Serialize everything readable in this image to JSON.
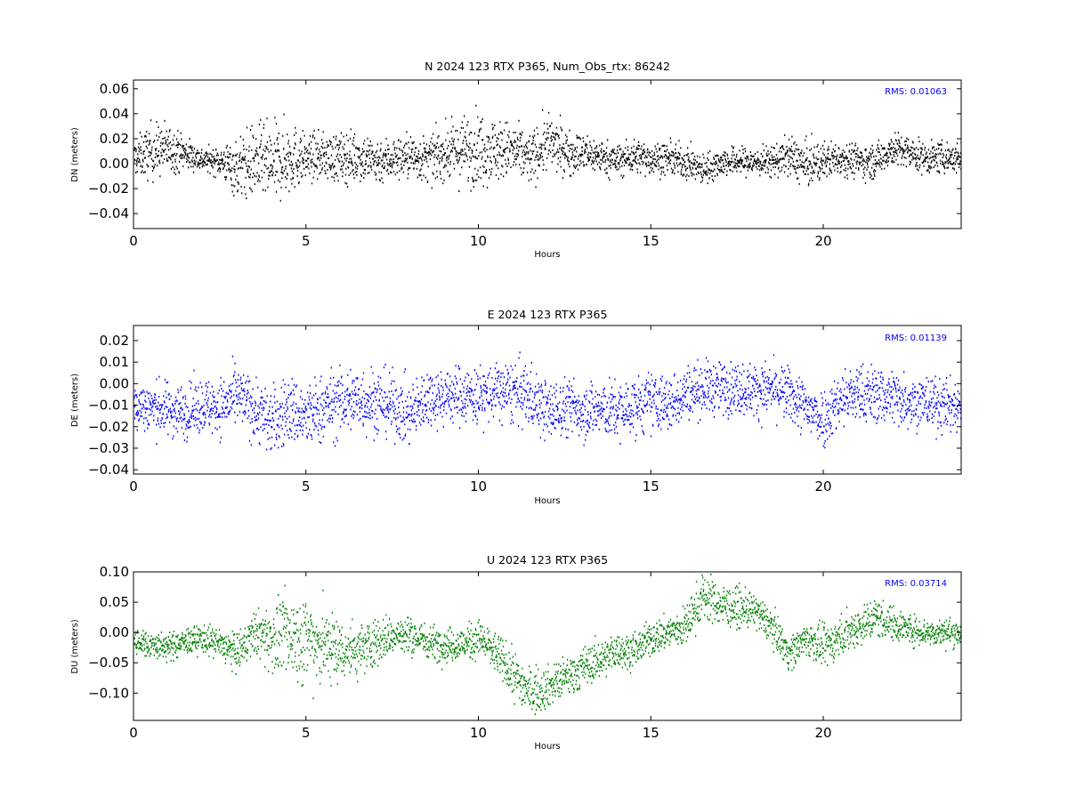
{
  "figure": {
    "background": "#ffffff"
  },
  "chart_data": [
    {
      "type": "scatter",
      "title": "N 2024 123 RTX  P365, Num_Obs_rtx: 86242",
      "xlabel": "Hours",
      "ylabel": "DN (meters)",
      "xlim": [
        0,
        24
      ],
      "ylim": [
        -0.052,
        0.067
      ],
      "xticks": [
        0,
        5,
        10,
        15,
        20
      ],
      "xtick_labels": [
        "0",
        "5",
        "10",
        "15",
        "20"
      ],
      "yticks": [
        -0.04,
        -0.02,
        0.0,
        0.02,
        0.04,
        0.06
      ],
      "ytick_labels": [
        "−0.04",
        "−0.02",
        "0.00",
        "0.02",
        "0.04",
        "0.06"
      ],
      "grid": false,
      "color": "#000000",
      "annotation": {
        "text": "RMS:  0.01063",
        "color": "#0000ff",
        "position": "top-right"
      },
      "series": [
        {
          "x": [
            0,
            0.5,
            1,
            1.5,
            2,
            2.5,
            3,
            3.5,
            4,
            4.5,
            5,
            5.5,
            6,
            6.5,
            7,
            7.5,
            8,
            8.5,
            9,
            9.5,
            10,
            10.5,
            11,
            11.5,
            12,
            12.5,
            13,
            13.5,
            14,
            14.5,
            15,
            15.5,
            16,
            16.5,
            17,
            17.5,
            18,
            18.5,
            19,
            19.5,
            20,
            20.5,
            21,
            21.5,
            22,
            22.5,
            23,
            23.5,
            24
          ],
          "y": [
            0.004,
            0.01,
            0.012,
            0.008,
            0.003,
            0.002,
            -0.004,
            0.002,
            -0.002,
            0.005,
            0.004,
            0.006,
            0.004,
            0.006,
            0.002,
            0.004,
            0.006,
            0.003,
            0.008,
            0.01,
            0.013,
            0.011,
            0.01,
            0.004,
            0.017,
            0.01,
            0.008,
            0.006,
            0.002,
            0.006,
            0.004,
            0.004,
            0.001,
            -0.005,
            0.001,
            0.002,
            0.001,
            0.002,
            0.006,
            -0.002,
            0.002,
            0.005,
            0.002,
            0.002,
            0.012,
            0.008,
            0.004,
            0.005,
            0.004
          ],
          "spread": [
            0.012,
            0.02,
            0.017,
            0.012,
            0.008,
            0.01,
            0.022,
            0.026,
            0.028,
            0.026,
            0.016,
            0.016,
            0.018,
            0.018,
            0.017,
            0.015,
            0.016,
            0.016,
            0.018,
            0.024,
            0.026,
            0.022,
            0.02,
            0.018,
            0.02,
            0.016,
            0.014,
            0.012,
            0.012,
            0.012,
            0.012,
            0.011,
            0.012,
            0.011,
            0.01,
            0.01,
            0.01,
            0.011,
            0.014,
            0.016,
            0.013,
            0.012,
            0.012,
            0.012,
            0.012,
            0.012,
            0.011,
            0.011,
            0.011
          ]
        }
      ]
    },
    {
      "type": "scatter",
      "title": "E 2024 123 RTX  P365",
      "xlabel": "Hours",
      "ylabel": "DE (meters)",
      "xlim": [
        0,
        24
      ],
      "ylim": [
        -0.042,
        0.027
      ],
      "xticks": [
        0,
        5,
        10,
        15,
        20
      ],
      "xtick_labels": [
        "0",
        "5",
        "10",
        "15",
        "20"
      ],
      "yticks": [
        -0.04,
        -0.03,
        -0.02,
        -0.01,
        0.0,
        0.01,
        0.02
      ],
      "ytick_labels": [
        "−0.04",
        "−0.03",
        "−0.02",
        "−0.01",
        "0.00",
        "0.01",
        "0.02"
      ],
      "grid": false,
      "color": "#0000ff",
      "annotation": {
        "text": "RMS:  0.01139",
        "color": "#0000ff",
        "position": "top-right"
      },
      "series": [
        {
          "x": [
            0,
            0.5,
            1,
            1.5,
            2,
            2.5,
            3,
            3.5,
            4,
            4.5,
            5,
            5.5,
            6,
            6.5,
            7,
            7.5,
            8,
            8.5,
            9,
            9.5,
            10,
            10.5,
            11,
            11.5,
            12,
            12.5,
            13,
            13.5,
            14,
            14.5,
            15,
            15.5,
            16,
            16.5,
            17,
            17.5,
            18,
            18.5,
            19,
            19.5,
            20,
            20.5,
            21,
            21.5,
            22,
            22.5,
            23,
            23.5,
            24
          ],
          "y": [
            -0.01,
            -0.011,
            -0.012,
            -0.013,
            -0.01,
            -0.011,
            -0.006,
            -0.012,
            -0.018,
            -0.012,
            -0.016,
            -0.011,
            -0.009,
            -0.007,
            -0.008,
            -0.01,
            -0.015,
            -0.006,
            -0.006,
            -0.005,
            -0.006,
            -0.004,
            -0.004,
            -0.006,
            -0.013,
            -0.011,
            -0.012,
            -0.012,
            -0.013,
            -0.011,
            -0.008,
            -0.01,
            -0.004,
            -0.002,
            -0.002,
            -0.002,
            -0.003,
            -0.003,
            -0.005,
            -0.012,
            -0.016,
            -0.007,
            -0.005,
            -0.005,
            -0.006,
            -0.008,
            -0.009,
            -0.01,
            -0.011
          ],
          "spread": [
            0.01,
            0.011,
            0.011,
            0.011,
            0.011,
            0.012,
            0.012,
            0.013,
            0.014,
            0.014,
            0.014,
            0.014,
            0.014,
            0.014,
            0.014,
            0.013,
            0.013,
            0.012,
            0.012,
            0.012,
            0.012,
            0.012,
            0.013,
            0.013,
            0.012,
            0.012,
            0.012,
            0.012,
            0.012,
            0.012,
            0.012,
            0.012,
            0.011,
            0.011,
            0.011,
            0.011,
            0.011,
            0.011,
            0.011,
            0.012,
            0.012,
            0.012,
            0.012,
            0.012,
            0.012,
            0.011,
            0.011,
            0.011,
            0.011
          ]
        }
      ]
    },
    {
      "type": "scatter",
      "title": "U 2024 123 RTX  P365",
      "xlabel": "Hours",
      "ylabel": "DU (meters)",
      "xlim": [
        0,
        24
      ],
      "ylim": [
        -0.145,
        0.1
      ],
      "xticks": [
        0,
        5,
        10,
        15,
        20
      ],
      "xtick_labels": [
        "0",
        "5",
        "10",
        "15",
        "20"
      ],
      "yticks": [
        -0.1,
        -0.05,
        0.0,
        0.05,
        0.1
      ],
      "ytick_labels": [
        "−0.10",
        "−0.05",
        "0.00",
        "0.05",
        "0.10"
      ],
      "grid": false,
      "color": "#008000",
      "annotation": {
        "text": "RMS:  0.03714",
        "color": "#0000ff",
        "position": "top-right"
      },
      "series": [
        {
          "x": [
            0,
            0.5,
            1,
            1.5,
            2,
            2.5,
            3,
            3.5,
            4,
            4.5,
            5,
            5.5,
            6,
            6.5,
            7,
            7.5,
            8,
            8.5,
            9,
            9.5,
            10,
            10.5,
            11,
            11.5,
            12,
            12.5,
            13,
            13.5,
            14,
            14.5,
            15,
            15.5,
            16,
            16.5,
            17,
            17.5,
            18,
            18.5,
            19,
            19.5,
            20,
            20.5,
            21,
            21.5,
            22,
            22.5,
            23,
            23.5,
            24
          ],
          "y": [
            -0.015,
            -0.02,
            -0.025,
            -0.015,
            -0.01,
            -0.02,
            -0.035,
            0.0,
            -0.01,
            -0.005,
            -0.01,
            -0.02,
            -0.03,
            -0.03,
            -0.015,
            -0.005,
            -0.005,
            -0.015,
            -0.02,
            -0.02,
            -0.01,
            -0.035,
            -0.07,
            -0.1,
            -0.09,
            -0.075,
            -0.06,
            -0.045,
            -0.03,
            -0.03,
            -0.01,
            0.0,
            0.01,
            0.06,
            0.045,
            0.04,
            0.035,
            0.01,
            -0.035,
            -0.01,
            -0.025,
            -0.005,
            0.01,
            0.025,
            0.015,
            0.005,
            0.0,
            0.0,
            0.0
          ],
          "spread": [
            0.02,
            0.02,
            0.02,
            0.02,
            0.02,
            0.025,
            0.028,
            0.03,
            0.05,
            0.06,
            0.065,
            0.06,
            0.045,
            0.04,
            0.035,
            0.03,
            0.028,
            0.025,
            0.025,
            0.025,
            0.028,
            0.03,
            0.035,
            0.035,
            0.03,
            0.03,
            0.03,
            0.028,
            0.025,
            0.025,
            0.025,
            0.025,
            0.03,
            0.035,
            0.03,
            0.028,
            0.025,
            0.025,
            0.025,
            0.025,
            0.028,
            0.03,
            0.03,
            0.03,
            0.025,
            0.022,
            0.02,
            0.02,
            0.02
          ]
        }
      ]
    }
  ]
}
